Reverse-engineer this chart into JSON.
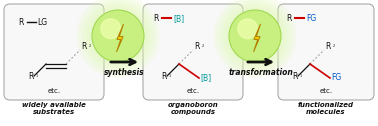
{
  "bg_color": "#ffffff",
  "box_ec": "#aaaaaa",
  "box_fc": "#f8f8f8",
  "arrow_color": "#111111",
  "synthesis_text": "synthesis",
  "transformation_text": "transformation",
  "label1": "widely available\nsubstrates",
  "label2": "organoboron\ncompounds",
  "label3": "functionalized\nmolecules",
  "red_color": "#cc0000",
  "blue_color": "#0055cc",
  "teal_color": "#009999",
  "black_color": "#111111",
  "gray_color": "#999999",
  "green_sphere": "#c8f080",
  "green_sphere_dark": "#a0d850",
  "green_glow": "#e0f8b0",
  "lightning_fill": "#f5d000",
  "lightning_edge": "#b08000"
}
